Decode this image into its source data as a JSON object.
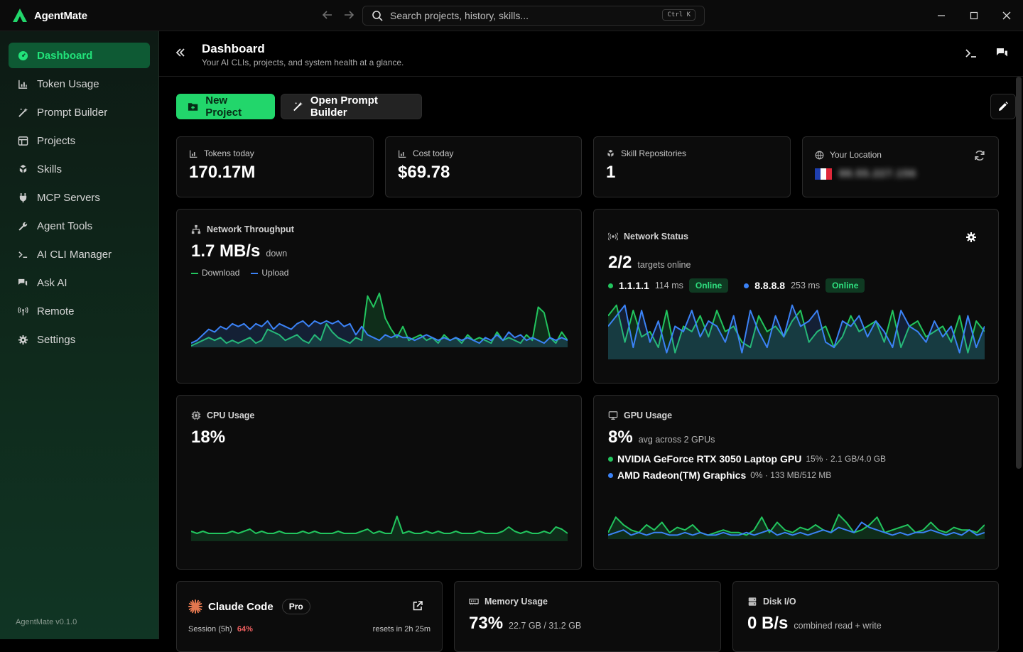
{
  "app": {
    "name": "AgentMate",
    "version": "AgentMate v0.1.0"
  },
  "titlebar": {
    "search_placeholder": "Search projects, history, skills...",
    "shortcut": "Ctrl K"
  },
  "sidebar": {
    "items": [
      {
        "label": "Dashboard",
        "icon": "dashboard-icon",
        "active": true
      },
      {
        "label": "Token Usage",
        "icon": "chart-icon"
      },
      {
        "label": "Prompt Builder",
        "icon": "wand-icon"
      },
      {
        "label": "Projects",
        "icon": "projects-icon"
      },
      {
        "label": "Skills",
        "icon": "skills-icon"
      },
      {
        "label": "MCP Servers",
        "icon": "plug-icon"
      },
      {
        "label": "Agent Tools",
        "icon": "wrench-icon"
      },
      {
        "label": "AI CLI Manager",
        "icon": "terminal-icon"
      },
      {
        "label": "Ask AI",
        "icon": "chat-icon"
      },
      {
        "label": "Remote",
        "icon": "antenna-icon"
      },
      {
        "label": "Settings",
        "icon": "gear-icon"
      }
    ]
  },
  "header": {
    "title": "Dashboard",
    "subtitle": "Your AI CLIs, projects, and system health at a glance."
  },
  "actions": {
    "new_project": "New Project",
    "prompt_builder": "Open Prompt Builder"
  },
  "kpis": {
    "tokens": {
      "label": "Tokens today",
      "value": "170.17M"
    },
    "cost": {
      "label": "Cost today",
      "value": "$69.78"
    },
    "repos": {
      "label": "Skill Repositories",
      "value": "1"
    },
    "location": {
      "label": "Your Location",
      "value": "88.55.227.156"
    }
  },
  "network": {
    "title": "Network Throughput",
    "value": "1.7 MB/s",
    "unit": "down",
    "legend_download": "Download",
    "legend_upload": "Upload",
    "download": [
      0,
      1,
      2,
      3,
      2,
      3,
      1,
      2,
      1,
      2,
      3,
      1,
      2,
      6,
      5,
      4,
      2,
      3,
      4,
      2,
      1,
      4,
      2,
      8,
      5,
      3,
      2,
      1,
      3,
      2,
      18,
      14,
      19,
      10,
      6,
      3,
      7,
      2,
      3,
      4,
      2,
      3,
      1,
      4,
      2,
      3,
      1,
      4,
      2,
      3,
      2,
      1,
      5,
      2,
      3,
      2,
      1,
      4,
      2,
      14,
      12,
      3,
      1,
      5,
      2
    ],
    "upload": [
      1,
      2,
      4,
      6,
      5,
      7,
      6,
      8,
      7,
      8,
      6,
      8,
      7,
      9,
      6,
      8,
      7,
      6,
      8,
      9,
      7,
      9,
      8,
      9,
      8,
      9,
      7,
      8,
      4,
      7,
      4,
      3,
      2,
      4,
      3,
      4,
      3,
      3,
      2,
      3,
      4,
      3,
      2,
      3,
      2,
      3,
      2,
      3,
      2,
      1,
      3,
      2,
      4,
      2,
      5,
      3,
      4,
      2,
      3,
      2,
      1,
      3,
      2,
      3,
      2
    ],
    "colors": {
      "download": "#22c55e",
      "upload": "#3b82f6"
    }
  },
  "net_status": {
    "title": "Network Status",
    "value": "2/2",
    "unit": "targets online",
    "targets": [
      {
        "host": "1.1.1.1",
        "latency": "114 ms",
        "status": "Online"
      },
      {
        "host": "8.8.8.8",
        "latency": "253 ms",
        "status": "Online"
      }
    ],
    "series_a": [
      8,
      10,
      3,
      9,
      4,
      5,
      2,
      9,
      1,
      6,
      5,
      8,
      4,
      9,
      5,
      6,
      3,
      2,
      8,
      5,
      6,
      4,
      7,
      9,
      3,
      5,
      6,
      2,
      4,
      8,
      5,
      6,
      7,
      3,
      9,
      2,
      6,
      7,
      4,
      5,
      6,
      3,
      8,
      1,
      7,
      5
    ],
    "series_b": [
      6,
      8,
      10,
      2,
      9,
      3,
      7,
      1,
      6,
      5,
      9,
      4,
      7,
      6,
      3,
      8,
      1,
      9,
      5,
      2,
      8,
      4,
      10,
      6,
      7,
      9,
      3,
      2,
      7,
      6,
      8,
      4,
      7,
      5,
      2,
      9,
      6,
      5,
      3,
      7,
      4,
      6,
      1,
      8,
      2,
      6
    ],
    "colors": {
      "a": "#22c55e",
      "b": "#3b82f6"
    }
  },
  "cpu": {
    "title": "CPU Usage",
    "value": "18%",
    "series": [
      4,
      3,
      4,
      3,
      3,
      3,
      3,
      4,
      3,
      4,
      5,
      3,
      4,
      3,
      3,
      4,
      3,
      3,
      3,
      4,
      3,
      4,
      3,
      3,
      3,
      4,
      3,
      3,
      3,
      4,
      5,
      3,
      4,
      3,
      3,
      11,
      3,
      4,
      3,
      3,
      4,
      3,
      4,
      3,
      3,
      4,
      3,
      3,
      3,
      4,
      3,
      3,
      3,
      4,
      6,
      4,
      3,
      4,
      3,
      3,
      4,
      3,
      6,
      5,
      3
    ],
    "color": "#22c55e"
  },
  "gpu": {
    "title": "GPU Usage",
    "value": "8%",
    "unit": "avg across 2 GPUs",
    "gpus": [
      {
        "name": "NVIDIA GeForce RTX 3050 Laptop GPU",
        "detail": "15% · 2.1 GB/4.0 GB",
        "color": "#22c55e"
      },
      {
        "name": "AMD Radeon(TM) Graphics",
        "detail": "0% · 133 MB/512 MB",
        "color": "#3b82f6"
      }
    ],
    "series_nv": [
      2,
      8,
      5,
      3,
      2,
      5,
      3,
      6,
      2,
      4,
      3,
      5,
      2,
      1,
      2,
      3,
      2,
      2,
      1,
      3,
      8,
      2,
      6,
      3,
      2,
      4,
      3,
      5,
      3,
      2,
      9,
      6,
      2,
      3,
      5,
      8,
      2,
      3,
      4,
      5,
      2,
      3,
      6,
      3,
      2,
      4,
      3,
      3,
      2,
      5
    ],
    "series_amd": [
      1,
      2,
      3,
      1,
      2,
      1,
      2,
      2,
      1,
      1,
      2,
      1,
      2,
      1,
      1,
      2,
      1,
      1,
      2,
      1,
      2,
      3,
      1,
      2,
      1,
      2,
      1,
      2,
      3,
      2,
      4,
      3,
      2,
      6,
      4,
      3,
      2,
      1,
      2,
      1,
      2,
      2,
      3,
      2,
      1,
      2,
      1,
      3,
      1,
      2
    ]
  },
  "claude": {
    "title": "Claude Code",
    "badge": "Pro",
    "session_label": "Session (5h)",
    "session_pct": "64%",
    "resets": "resets in 2h 25m"
  },
  "memory": {
    "title": "Memory Usage",
    "value": "73%",
    "unit": "22.7 GB / 31.2 GB"
  },
  "disk": {
    "title": "Disk I/O",
    "value": "0 B/s",
    "unit": "combined read + write"
  }
}
